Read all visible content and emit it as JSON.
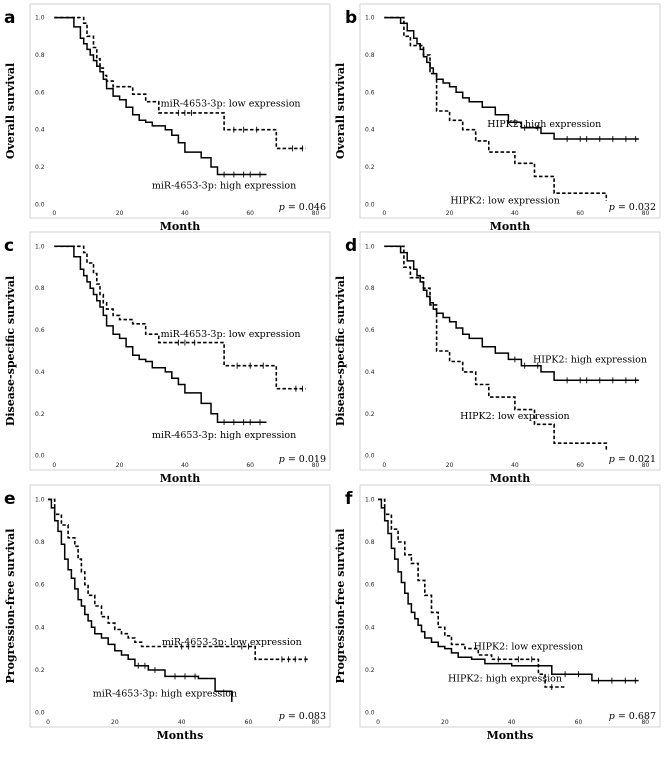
{
  "chart_data": [
    {
      "type": "line",
      "panel": "a",
      "xlabel": "Month",
      "ylabel": "Overall survival",
      "xlim": [
        -5,
        82
      ],
      "ylim": [
        -0.03,
        1.03
      ],
      "xticks": [
        "0",
        "20",
        "40",
        "60",
        "80"
      ],
      "yticks": [
        "0.0",
        "0.2",
        "0.4",
        "0.6",
        "0.8",
        "1.0"
      ],
      "p_value": "p = 0.046",
      "series": [
        {
          "label": "miR-4653-3p: high expression",
          "style": "solid",
          "label_anchor": [
            52,
            0.1
          ],
          "x": [
            0,
            6,
            8,
            9,
            10,
            11,
            12,
            13,
            14,
            15,
            16,
            18,
            20,
            22,
            24,
            26,
            28,
            30,
            32,
            34,
            36,
            38,
            40,
            45,
            48,
            50,
            65
          ],
          "y": [
            1.0,
            0.95,
            0.89,
            0.86,
            0.83,
            0.8,
            0.77,
            0.74,
            0.71,
            0.67,
            0.62,
            0.58,
            0.56,
            0.52,
            0.48,
            0.45,
            0.44,
            0.42,
            0.42,
            0.4,
            0.37,
            0.33,
            0.28,
            0.25,
            0.2,
            0.16,
            0.16
          ],
          "censored": [
            52,
            55,
            58,
            60,
            63
          ]
        },
        {
          "label": "miR-4653-3p: low expression",
          "style": "dashed",
          "label_anchor": [
            54,
            0.54
          ],
          "x": [
            0,
            9,
            10,
            12,
            13,
            14,
            15,
            16,
            18,
            20,
            24,
            28,
            32,
            50,
            52,
            68,
            77
          ],
          "y": [
            1.0,
            0.97,
            0.9,
            0.84,
            0.78,
            0.73,
            0.69,
            0.66,
            0.63,
            0.63,
            0.59,
            0.55,
            0.49,
            0.49,
            0.4,
            0.3,
            0.3
          ],
          "censored": [
            38,
            40,
            42,
            55,
            58,
            62,
            73,
            76
          ]
        }
      ]
    },
    {
      "type": "line",
      "panel": "b",
      "xlabel": "Month",
      "ylabel": "Overall survival",
      "xlim": [
        -5,
        82
      ],
      "ylim": [
        -0.03,
        1.03
      ],
      "xticks": [
        "0",
        "20",
        "40",
        "60",
        "80"
      ],
      "yticks": [
        "0.0",
        "0.2",
        "0.4",
        "0.6",
        "0.8",
        "1.0"
      ],
      "p_value": "p = 0.032",
      "series": [
        {
          "label": "HIPK2: high expression",
          "style": "solid",
          "label_anchor": [
            49,
            0.43
          ],
          "x": [
            0,
            5,
            7,
            9,
            10,
            11,
            12,
            13,
            14,
            15,
            16,
            18,
            20,
            22,
            24,
            26,
            30,
            34,
            38,
            42,
            48,
            52,
            78
          ],
          "y": [
            1.0,
            0.97,
            0.93,
            0.89,
            0.86,
            0.83,
            0.79,
            0.76,
            0.73,
            0.7,
            0.67,
            0.65,
            0.63,
            0.6,
            0.57,
            0.55,
            0.52,
            0.48,
            0.44,
            0.41,
            0.38,
            0.35,
            0.35
          ],
          "censored": [
            40,
            43,
            47,
            56,
            60,
            62,
            66,
            70,
            74,
            77
          ]
        },
        {
          "label": "HIPK2: low expression",
          "style": "dashed",
          "label_anchor": [
            37,
            0.02
          ],
          "x": [
            0,
            6,
            8,
            12,
            14,
            16,
            20,
            24,
            28,
            32,
            40,
            46,
            52,
            68
          ],
          "y": [
            1.0,
            0.9,
            0.85,
            0.8,
            0.7,
            0.5,
            0.45,
            0.4,
            0.34,
            0.28,
            0.22,
            0.15,
            0.06,
            0.02
          ],
          "censored": []
        }
      ]
    },
    {
      "type": "line",
      "panel": "c",
      "xlabel": "Month",
      "ylabel": "Disease-specific survival",
      "xlim": [
        -5,
        82
      ],
      "ylim": [
        -0.03,
        1.03
      ],
      "xticks": [
        "0",
        "20",
        "40",
        "60",
        "80"
      ],
      "yticks": [
        "0.0",
        "0.2",
        "0.4",
        "0.6",
        "0.8",
        "1.0"
      ],
      "p_value": "p = 0.019",
      "series": [
        {
          "label": "miR-4653-3p: high expression",
          "style": "solid",
          "label_anchor": [
            52,
            0.1
          ],
          "x": [
            0,
            6,
            8,
            9,
            10,
            11,
            12,
            13,
            14,
            15,
            16,
            18,
            20,
            22,
            24,
            26,
            28,
            30,
            32,
            34,
            36,
            38,
            40,
            45,
            48,
            50,
            65
          ],
          "y": [
            1.0,
            0.95,
            0.89,
            0.86,
            0.83,
            0.8,
            0.77,
            0.74,
            0.71,
            0.67,
            0.62,
            0.58,
            0.56,
            0.52,
            0.48,
            0.46,
            0.45,
            0.42,
            0.42,
            0.4,
            0.37,
            0.34,
            0.3,
            0.25,
            0.2,
            0.16,
            0.16
          ],
          "censored": [
            52,
            55,
            58,
            60,
            63
          ]
        },
        {
          "label": "miR-4653-3p: low expression",
          "style": "dashed",
          "label_anchor": [
            54,
            0.58
          ],
          "x": [
            0,
            9,
            10,
            12,
            13,
            14,
            15,
            16,
            18,
            20,
            24,
            28,
            32,
            50,
            52,
            68,
            77
          ],
          "y": [
            1.0,
            0.97,
            0.92,
            0.87,
            0.82,
            0.77,
            0.73,
            0.7,
            0.67,
            0.65,
            0.63,
            0.58,
            0.54,
            0.54,
            0.43,
            0.32,
            0.32
          ],
          "censored": [
            38,
            40,
            43,
            56,
            60,
            64,
            74,
            76
          ]
        }
      ]
    },
    {
      "type": "line",
      "panel": "d",
      "xlabel": "Month",
      "ylabel": "Disease-specific survival",
      "xlim": [
        -5,
        82
      ],
      "ylim": [
        -0.03,
        1.03
      ],
      "xticks": [
        "0",
        "20",
        "40",
        "60",
        "80"
      ],
      "yticks": [
        "0.0",
        "0.2",
        "0.4",
        "0.6",
        "0.8",
        "1.0"
      ],
      "p_value": "p = 0.021",
      "series": [
        {
          "label": "HIPK2: high expression",
          "style": "solid",
          "label_anchor": [
            63,
            0.46
          ],
          "x": [
            0,
            5,
            7,
            9,
            10,
            11,
            12,
            13,
            14,
            15,
            16,
            18,
            20,
            22,
            24,
            26,
            30,
            34,
            38,
            42,
            48,
            52,
            78
          ],
          "y": [
            1.0,
            0.97,
            0.93,
            0.89,
            0.86,
            0.83,
            0.79,
            0.76,
            0.73,
            0.7,
            0.68,
            0.66,
            0.64,
            0.61,
            0.58,
            0.56,
            0.52,
            0.49,
            0.46,
            0.43,
            0.4,
            0.36,
            0.36
          ],
          "censored": [
            40,
            43,
            47,
            56,
            60,
            62,
            66,
            70,
            74,
            77
          ]
        },
        {
          "label": "HIPK2: low expression",
          "style": "dashed",
          "label_anchor": [
            40,
            0.19
          ],
          "x": [
            0,
            6,
            8,
            12,
            14,
            16,
            20,
            24,
            28,
            32,
            40,
            46,
            52,
            68
          ],
          "y": [
            1.0,
            0.9,
            0.85,
            0.8,
            0.72,
            0.5,
            0.45,
            0.4,
            0.34,
            0.28,
            0.22,
            0.15,
            0.06,
            0.02
          ],
          "censored": []
        }
      ]
    },
    {
      "type": "line",
      "panel": "e",
      "xlabel": "Months",
      "ylabel": "Progression-free survival",
      "xlim": [
        -3,
        82
      ],
      "ylim": [
        -0.03,
        1.03
      ],
      "xticks": [
        "0",
        "20",
        "40",
        "60",
        "80"
      ],
      "yticks": [
        "0.0",
        "0.2",
        "0.4",
        "0.6",
        "0.8",
        "1.0"
      ],
      "p_value": "p = 0.083",
      "series": [
        {
          "label": "miR-4653-3p: high expression",
          "style": "solid",
          "label_anchor": [
            35,
            0.09
          ],
          "x": [
            0,
            1,
            2,
            3,
            4,
            5,
            6,
            7,
            8,
            9,
            10,
            11,
            12,
            13,
            14,
            16,
            18,
            20,
            22,
            24,
            26,
            30,
            35,
            45,
            50,
            55
          ],
          "y": [
            1.0,
            0.96,
            0.9,
            0.85,
            0.79,
            0.72,
            0.67,
            0.63,
            0.58,
            0.53,
            0.5,
            0.46,
            0.43,
            0.4,
            0.37,
            0.35,
            0.32,
            0.29,
            0.27,
            0.25,
            0.22,
            0.2,
            0.17,
            0.16,
            0.1,
            0.05
          ],
          "censored": [
            27,
            29,
            32,
            38,
            41,
            44
          ]
        },
        {
          "label": "miR-4653-3p: low expression",
          "style": "dashed",
          "label_anchor": [
            55,
            0.33
          ],
          "x": [
            0,
            2,
            4,
            6,
            8,
            9,
            10,
            11,
            12,
            14,
            16,
            18,
            20,
            22,
            24,
            26,
            28,
            62,
            78
          ],
          "y": [
            1.0,
            0.93,
            0.88,
            0.82,
            0.78,
            0.72,
            0.66,
            0.6,
            0.55,
            0.5,
            0.45,
            0.42,
            0.39,
            0.37,
            0.35,
            0.33,
            0.31,
            0.25,
            0.25
          ],
          "censored": [
            40,
            42,
            58,
            60,
            70,
            72,
            74,
            77
          ]
        }
      ]
    },
    {
      "type": "line",
      "panel": "f",
      "xlabel": "Months",
      "ylabel": "Progression-free survival",
      "xlim": [
        -3,
        82
      ],
      "ylim": [
        -0.03,
        1.03
      ],
      "xticks": [
        "0",
        "20",
        "40",
        "60",
        "80"
      ],
      "yticks": [
        "0.0",
        "0.2",
        "0.4",
        "0.6",
        "0.8",
        "1.0"
      ],
      "p_value": "p = 0.687",
      "series": [
        {
          "label": "HIPK2: high expression",
          "style": "solid",
          "label_anchor": [
            38,
            0.16
          ],
          "x": [
            0,
            1,
            2,
            3,
            4,
            5,
            6,
            7,
            8,
            9,
            10,
            11,
            12,
            13,
            14,
            16,
            18,
            20,
            22,
            24,
            28,
            32,
            40,
            52,
            64,
            78
          ],
          "y": [
            1.0,
            0.96,
            0.9,
            0.84,
            0.77,
            0.72,
            0.66,
            0.61,
            0.56,
            0.51,
            0.47,
            0.44,
            0.41,
            0.38,
            0.35,
            0.33,
            0.31,
            0.3,
            0.28,
            0.26,
            0.25,
            0.23,
            0.22,
            0.18,
            0.15,
            0.15
          ],
          "censored": [
            56,
            60,
            66,
            70,
            74,
            77
          ]
        },
        {
          "label": "HIPK2: low expression",
          "style": "dashed",
          "label_anchor": [
            45,
            0.31
          ],
          "x": [
            0,
            2,
            4,
            6,
            8,
            10,
            12,
            14,
            16,
            18,
            20,
            22,
            26,
            30,
            34,
            40,
            48,
            50,
            56
          ],
          "y": [
            1.0,
            0.93,
            0.86,
            0.8,
            0.74,
            0.7,
            0.62,
            0.55,
            0.47,
            0.4,
            0.36,
            0.32,
            0.3,
            0.27,
            0.25,
            0.25,
            0.18,
            0.12,
            0.12
          ],
          "censored": [
            36,
            42,
            46,
            52
          ]
        }
      ]
    }
  ]
}
